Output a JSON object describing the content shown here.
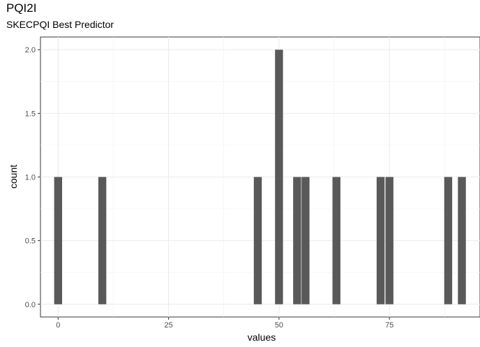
{
  "chart_data": {
    "type": "bar",
    "title": "PQI2I",
    "subtitle": "SKECPQI Best Predictor",
    "xlabel": "values",
    "ylabel": "count",
    "xlim": [
      -4,
      95.5
    ],
    "ylim": [
      -0.1,
      2.1
    ],
    "x_ticks": [
      0,
      25,
      50,
      75
    ],
    "y_ticks": [
      0.0,
      0.5,
      1.0,
      1.5,
      2.0
    ],
    "y_tick_labels": [
      "0.0",
      "0.5",
      "1.0",
      "1.5",
      "2.0"
    ],
    "bin_width": 1.8,
    "grid": true,
    "bar_color": "#595959",
    "bars": [
      {
        "x": 0,
        "count": 1
      },
      {
        "x": 10,
        "count": 1
      },
      {
        "x": 45.2,
        "count": 1
      },
      {
        "x": 50,
        "count": 2
      },
      {
        "x": 54.1,
        "count": 1
      },
      {
        "x": 56,
        "count": 1
      },
      {
        "x": 63,
        "count": 1
      },
      {
        "x": 73,
        "count": 1
      },
      {
        "x": 75,
        "count": 1
      },
      {
        "x": 88.3,
        "count": 1
      },
      {
        "x": 91.4,
        "count": 1
      }
    ]
  }
}
